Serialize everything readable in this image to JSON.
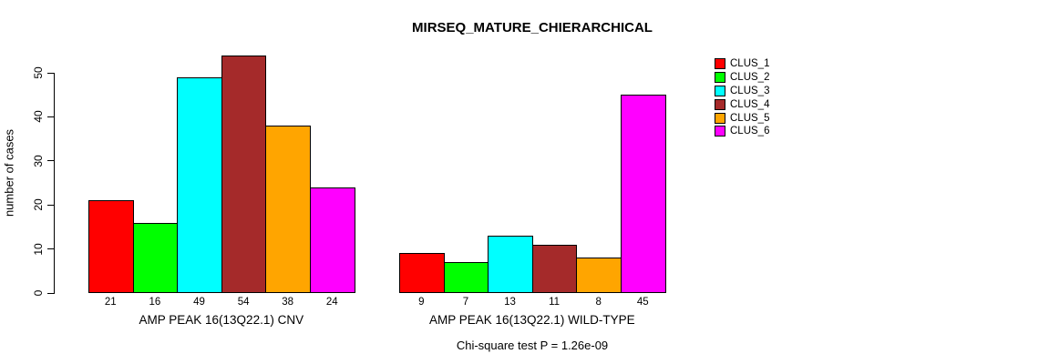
{
  "page": {
    "background": "#ffffff"
  },
  "chart_data": {
    "type": "bar",
    "title": "MIRSEQ_MATURE_CHIERARCHICAL",
    "ylabel": "number of cases",
    "xlabel": "",
    "ylim": [
      0,
      50
    ],
    "yticks": [
      0,
      10,
      20,
      30,
      40,
      50
    ],
    "grid": false,
    "legend_position": "right",
    "series_names": [
      "CLUS_1",
      "CLUS_2",
      "CLUS_3",
      "CLUS_4",
      "CLUS_5",
      "CLUS_6"
    ],
    "series_colors": [
      "#FF0000",
      "#00FF00",
      "#00FFFF",
      "#A52A2A",
      "#FFA500",
      "#FF00FF"
    ],
    "groups": [
      {
        "label": "AMP PEAK 16(13Q22.1) CNV",
        "values": [
          21,
          16,
          49,
          54,
          38,
          24
        ]
      },
      {
        "label": "AMP PEAK 16(13Q22.1) WILD-TYPE",
        "values": [
          9,
          7,
          13,
          11,
          8,
          45
        ]
      }
    ],
    "bar_value_labels_visible": true,
    "footnote": "Chi-square test P = 1.26e-09"
  }
}
